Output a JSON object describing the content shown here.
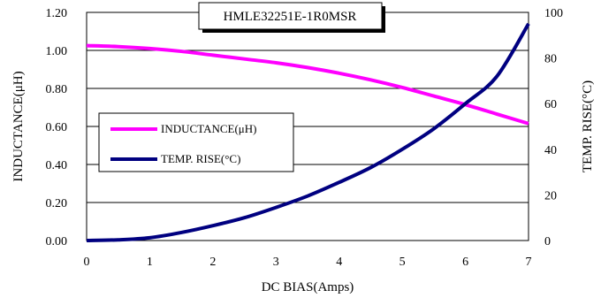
{
  "chart_data": {
    "type": "line",
    "title": "HMLE32251E-1R0MSR",
    "xlabel": "DC BIAS(Amps)",
    "ylabel_left": "INDUCTANCE(μH)",
    "ylabel_right": "TEMP. RISE(°C)",
    "xlim": [
      0,
      7
    ],
    "ylim_left": [
      0,
      1.2
    ],
    "ylim_right": [
      0,
      100
    ],
    "x_ticks": [
      "0",
      "1",
      "2",
      "3",
      "4",
      "5",
      "6",
      "7"
    ],
    "y_left_ticks": [
      "0.00",
      "0.20",
      "0.40",
      "0.60",
      "0.80",
      "1.00",
      "1.20"
    ],
    "y_right_ticks": [
      "0",
      "20",
      "40",
      "60",
      "80",
      "100"
    ],
    "grid": "horizontal",
    "legend_position": "center-left",
    "series": [
      {
        "name": "INDUCTANCE(μH)",
        "axis": "left",
        "color": "#ff00ff",
        "x": [
          0,
          0.5,
          1,
          1.5,
          2,
          2.5,
          3,
          3.5,
          4,
          4.5,
          5,
          5.5,
          6,
          6.5,
          7
        ],
        "y": [
          1.025,
          1.02,
          1.01,
          0.995,
          0.975,
          0.955,
          0.935,
          0.91,
          0.88,
          0.845,
          0.805,
          0.76,
          0.715,
          0.665,
          0.615
        ]
      },
      {
        "name": "TEMP. RISE(°C)",
        "axis": "right",
        "color": "#000080",
        "x": [
          0,
          0.5,
          1,
          1.5,
          2,
          2.5,
          3,
          3.5,
          4,
          4.5,
          5,
          5.5,
          6,
          6.5,
          7
        ],
        "y": [
          0,
          0.3,
          1.2,
          3.5,
          6.5,
          10,
          14.5,
          19.5,
          25.5,
          32,
          40,
          49,
          60,
          72,
          95
        ]
      }
    ]
  }
}
